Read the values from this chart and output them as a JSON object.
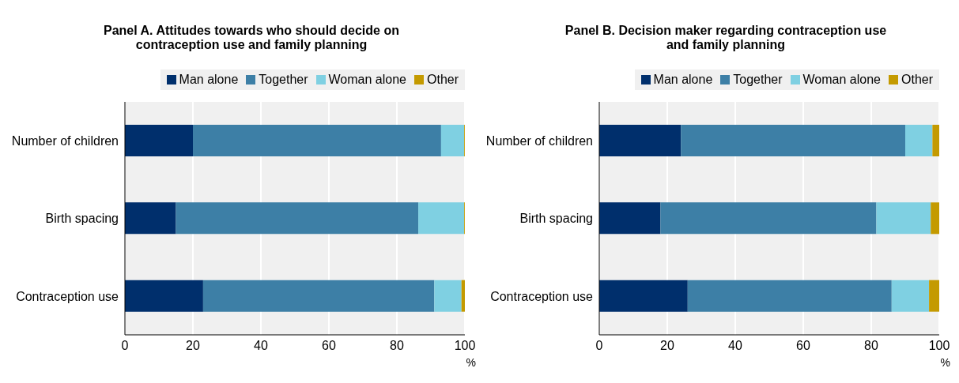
{
  "chart_data": [
    {
      "type": "bar",
      "orientation": "horizontal",
      "stacked": true,
      "title": "Panel A. Attitudes towards who should decide on contraception use and family planning",
      "xlabel": "%",
      "categories": [
        "Number of children",
        "Birth spacing",
        "Contraception use"
      ],
      "xlim": [
        0,
        100
      ],
      "xticks": [
        0,
        20,
        40,
        60,
        80,
        100
      ],
      "grid": "x",
      "legend": "top",
      "series": [
        {
          "name": "Man alone",
          "color": "#002f6c",
          "values": [
            20,
            15,
            23
          ]
        },
        {
          "name": "Together",
          "color": "#3d7fa6",
          "values": [
            73,
            71.3,
            68
          ]
        },
        {
          "name": "Woman alone",
          "color": "#7fd0e2",
          "values": [
            6.8,
            13.5,
            8
          ]
        },
        {
          "name": "Other",
          "color": "#c49a00",
          "values": [
            0.2,
            0.2,
            1
          ]
        }
      ]
    },
    {
      "type": "bar",
      "orientation": "horizontal",
      "stacked": true,
      "title": "Panel B. Decision maker regarding contraception use and family planning",
      "xlabel": "%",
      "categories": [
        "Number of children",
        "Birth spacing",
        "Contraception use"
      ],
      "xlim": [
        0,
        100
      ],
      "xticks": [
        0,
        20,
        40,
        60,
        80,
        100
      ],
      "grid": "x",
      "legend": "top",
      "series": [
        {
          "name": "Man alone",
          "color": "#002f6c",
          "values": [
            24,
            18,
            26
          ]
        },
        {
          "name": "Together",
          "color": "#3d7fa6",
          "values": [
            66,
            63.5,
            60
          ]
        },
        {
          "name": "Woman alone",
          "color": "#7fd0e2",
          "values": [
            8,
            16,
            11
          ]
        },
        {
          "name": "Other",
          "color": "#c49a00",
          "values": [
            2,
            2.5,
            3
          ]
        }
      ]
    }
  ]
}
